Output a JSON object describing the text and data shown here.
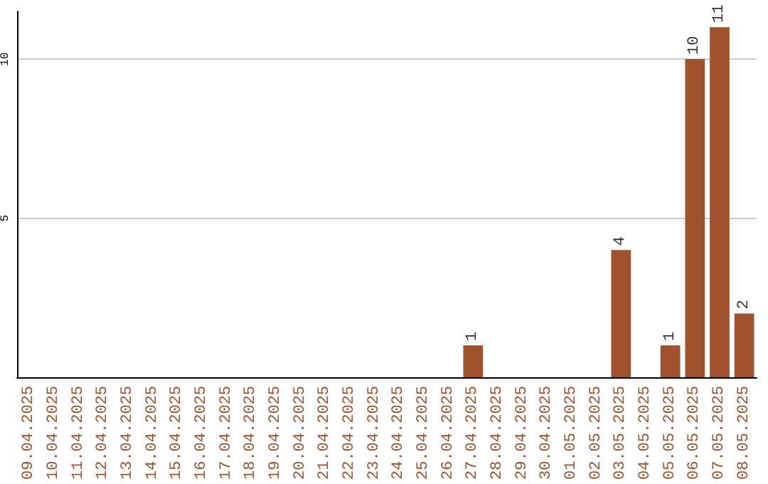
{
  "chart_data": {
    "type": "bar",
    "categories": [
      "09.04.2025",
      "10.04.2025",
      "11.04.2025",
      "12.04.2025",
      "13.04.2025",
      "14.04.2025",
      "15.04.2025",
      "16.04.2025",
      "17.04.2025",
      "18.04.2025",
      "19.04.2025",
      "20.04.2025",
      "21.04.2025",
      "22.04.2025",
      "23.04.2025",
      "24.04.2025",
      "25.04.2025",
      "26.04.2025",
      "27.04.2025",
      "28.04.2025",
      "29.04.2025",
      "30.04.2025",
      "01.05.2025",
      "02.05.2025",
      "03.05.2025",
      "04.05.2025",
      "05.05.2025",
      "06.05.2025",
      "07.05.2025",
      "08.05.2025"
    ],
    "values": [
      0,
      0,
      0,
      0,
      0,
      0,
      0,
      0,
      0,
      0,
      0,
      0,
      0,
      0,
      0,
      0,
      0,
      0,
      1,
      0,
      0,
      0,
      0,
      0,
      4,
      0,
      1,
      10,
      11,
      2
    ],
    "value_labels": [
      null,
      null,
      null,
      null,
      null,
      null,
      null,
      null,
      null,
      null,
      null,
      null,
      null,
      null,
      null,
      null,
      null,
      null,
      "1",
      null,
      null,
      null,
      null,
      null,
      "4",
      null,
      "1",
      "10",
      "11",
      "2"
    ],
    "color": "#a0522d",
    "ylim": [
      0,
      11.5
    ],
    "yticks": [
      5,
      10
    ],
    "grid": "y"
  }
}
